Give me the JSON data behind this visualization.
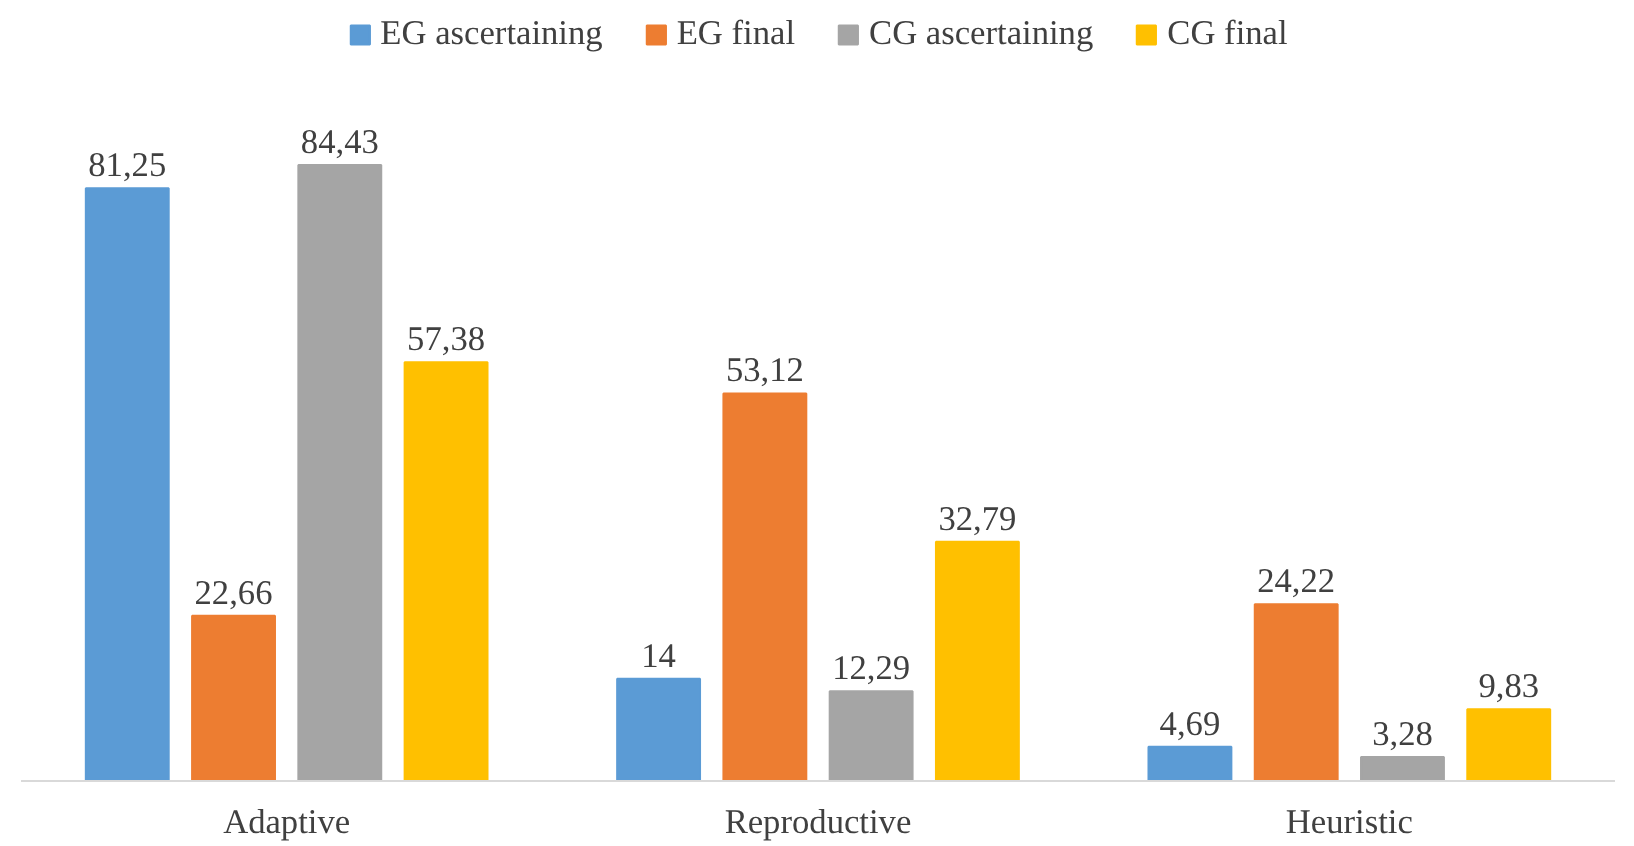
{
  "chart_data": {
    "type": "bar",
    "categories": [
      "Adaptive",
      "Reproductive",
      "Heuristic"
    ],
    "series": [
      {
        "name": "EG ascertaining",
        "color": "#5b9bd5",
        "values": [
          81.25,
          14,
          4.69
        ],
        "value_labels": [
          "81,25",
          "14",
          "4,69"
        ]
      },
      {
        "name": "EG final",
        "color": "#ed7d31",
        "values": [
          22.66,
          53.12,
          24.22
        ],
        "value_labels": [
          "22,66",
          "53,12",
          "24,22"
        ]
      },
      {
        "name": "CG ascertaining",
        "color": "#a5a5a5",
        "values": [
          84.43,
          12.29,
          3.28
        ],
        "value_labels": [
          "84,43",
          "12,29",
          "3,28"
        ]
      },
      {
        "name": "CG final",
        "color": "#ffc000",
        "values": [
          57.38,
          32.79,
          9.83
        ],
        "value_labels": [
          "57,38",
          "32,79",
          "9,83"
        ]
      }
    ],
    "legend": "top"
  }
}
